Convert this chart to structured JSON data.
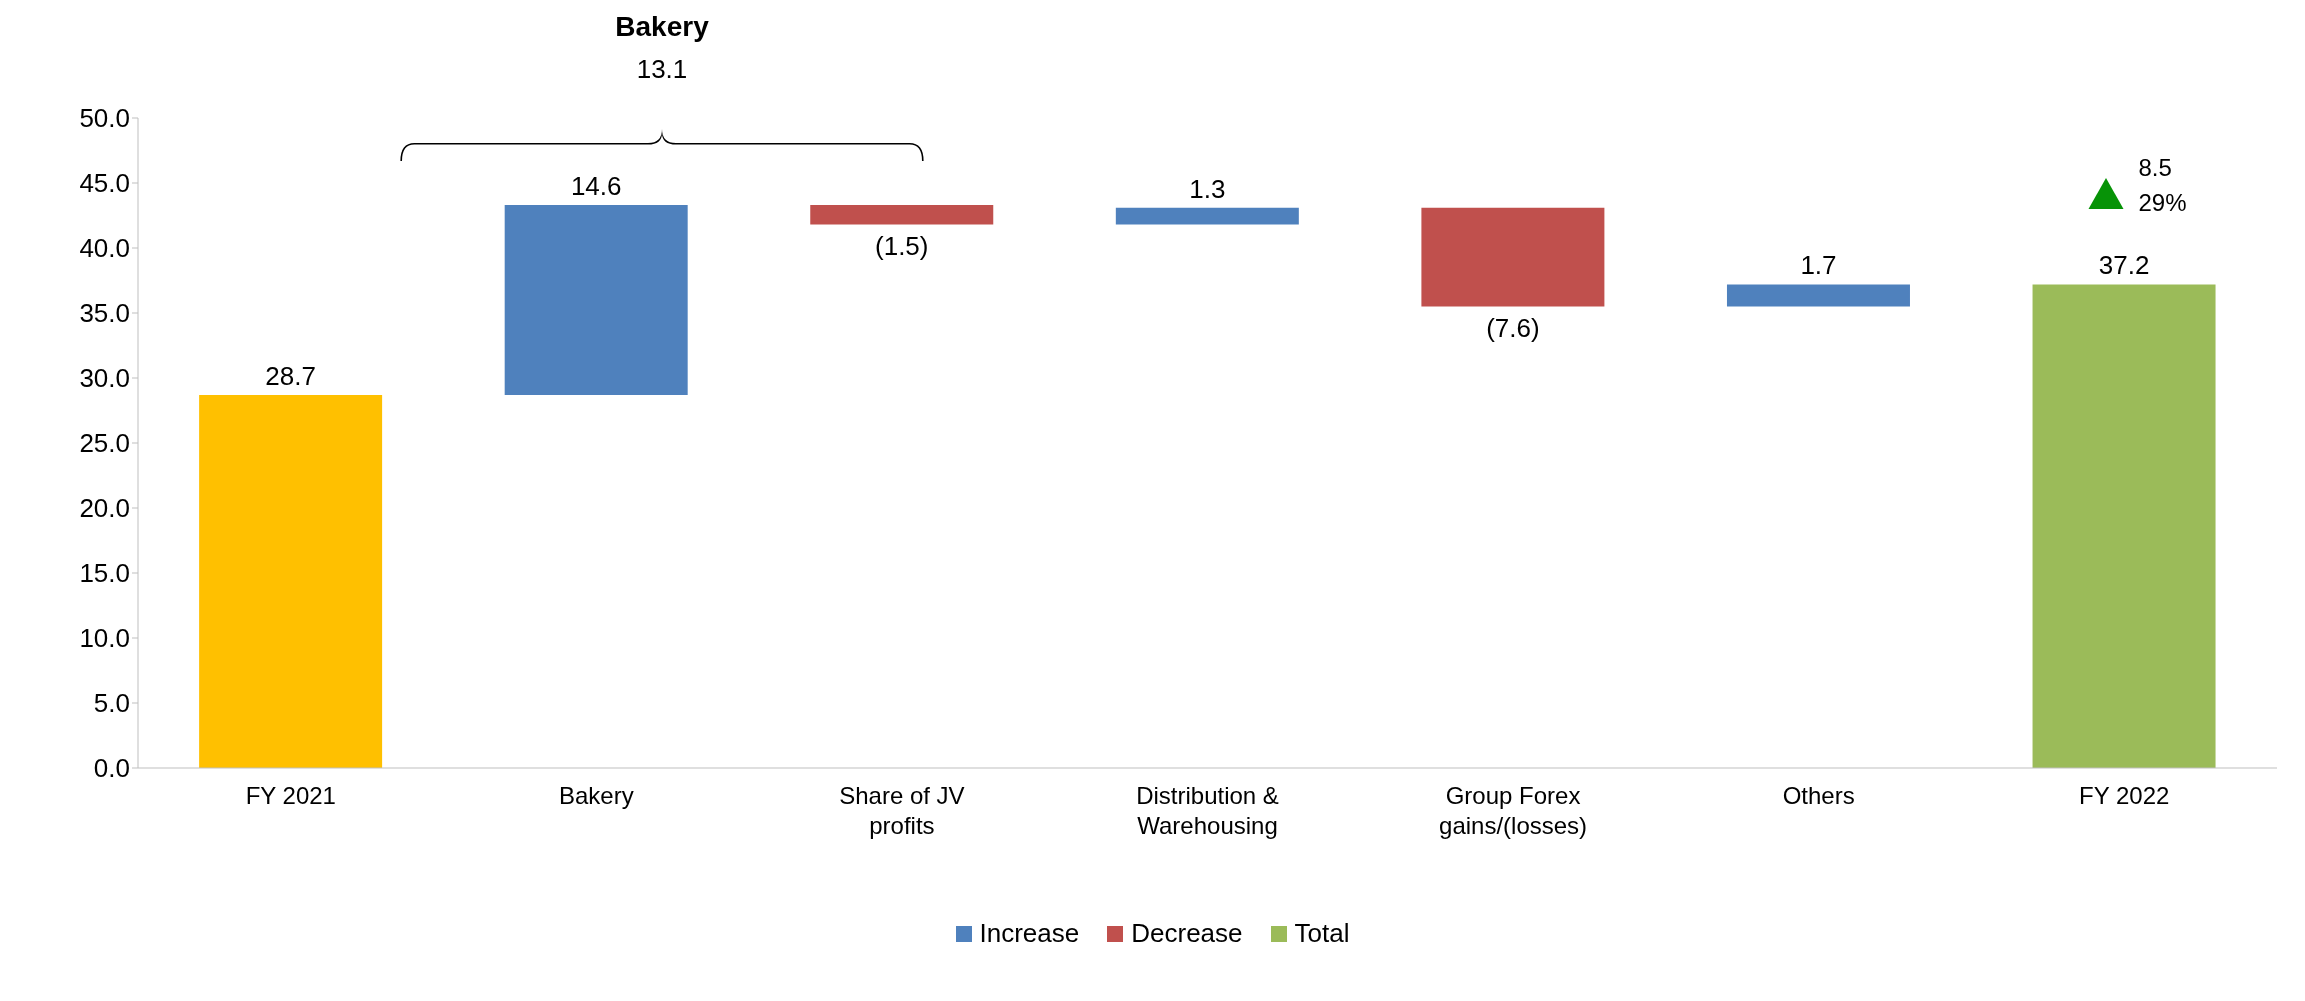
{
  "chart_data": {
    "type": "bar",
    "categories": [
      "FY 2021",
      "Bakery",
      "Share of JV profits",
      "Distribution & Warehousing",
      "Group Forex gains/(losses)",
      "Others",
      "FY 2022"
    ],
    "series": [
      {
        "color": "#ffc000",
        "values": [
          28.7,
          null,
          null,
          null,
          null,
          null,
          null
        ],
        "base": [
          0,
          null,
          null,
          null,
          null,
          null,
          null
        ],
        "value_labels": [
          "28.7",
          null,
          null,
          null,
          null,
          null,
          null
        ]
      },
      {
        "name": "Increase",
        "color": "#4f81bd",
        "values": [
          null,
          14.6,
          null,
          1.3,
          null,
          1.7,
          null
        ],
        "base": [
          null,
          28.7,
          null,
          41.8,
          null,
          35.5,
          null
        ],
        "value_labels": [
          null,
          "14.6",
          null,
          "1.3",
          null,
          "1.7",
          null
        ]
      },
      {
        "name": "Decrease",
        "color": "#c0504d",
        "values": [
          null,
          null,
          -1.5,
          null,
          -7.6,
          null,
          null
        ],
        "base": [
          null,
          null,
          43.3,
          null,
          43.1,
          null,
          null
        ],
        "value_labels": [
          null,
          null,
          "(1.5)",
          null,
          "(7.6)",
          null,
          null
        ]
      },
      {
        "name": "Total",
        "color": "#9bbb59",
        "values": [
          null,
          null,
          null,
          null,
          null,
          null,
          37.2
        ],
        "base": [
          null,
          null,
          null,
          null,
          null,
          null,
          0
        ],
        "value_labels": [
          null,
          null,
          null,
          null,
          null,
          null,
          "37.2"
        ]
      }
    ],
    "ylim": [
      0,
      50
    ],
    "yticks": [
      {
        "value": 0,
        "label": "0.0"
      },
      {
        "value": 5,
        "label": "5.0"
      },
      {
        "value": 10,
        "label": "10.0"
      },
      {
        "value": 15,
        "label": "15.0"
      },
      {
        "value": 20,
        "label": "20.0"
      },
      {
        "value": 25,
        "label": "25.0"
      },
      {
        "value": 30,
        "label": "30.0"
      },
      {
        "value": 35,
        "label": "35.0"
      },
      {
        "value": 40,
        "label": "40.0"
      },
      {
        "value": 45,
        "label": "45.0"
      },
      {
        "value": 50,
        "label": "50.0"
      }
    ],
    "grid": false,
    "legend": "bottom",
    "annotations": [
      "Bakery",
      "13.1",
      "8.5",
      "29%"
    ]
  }
}
